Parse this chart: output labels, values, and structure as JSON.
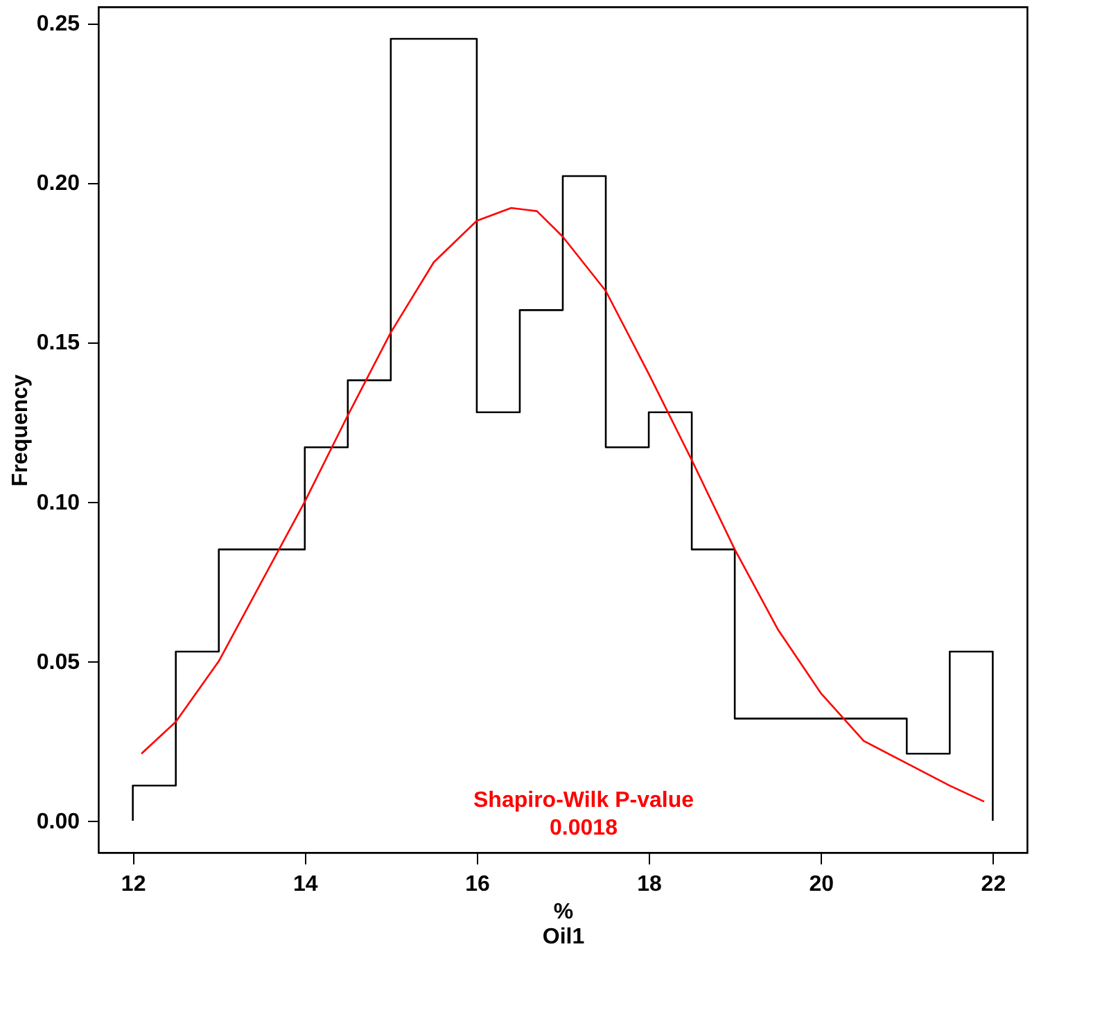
{
  "chart_data": {
    "type": "histogram",
    "xlabel": "%\nOil1",
    "ylabel": "Frequency",
    "color": "#000000",
    "bins": [
      12,
      12.5,
      13,
      14,
      14.5,
      15,
      16,
      16.5,
      17,
      17.5,
      18,
      18.5,
      19,
      21,
      21.5,
      22
    ],
    "values": [
      0.011,
      0.053,
      0.085,
      0.117,
      0.138,
      0.245,
      0.128,
      0.16,
      0.202,
      0.117,
      0.128,
      0.085,
      0.032,
      0.021,
      0.053
    ],
    "series": [
      {
        "type": "line",
        "color": "#ff0000",
        "x": [
          12.1,
          12.5,
          13,
          13.5,
          14,
          14.5,
          15,
          15.5,
          16,
          16.4,
          16.7,
          17,
          17.5,
          18,
          18.5,
          19,
          19.5,
          20,
          20.5,
          21,
          21.5,
          21.9
        ],
        "values": [
          0.021,
          0.031,
          0.05,
          0.075,
          0.1,
          0.127,
          0.153,
          0.175,
          0.188,
          0.192,
          0.191,
          0.183,
          0.166,
          0.14,
          0.113,
          0.085,
          0.06,
          0.04,
          0.025,
          0.018,
          0.011,
          0.006
        ]
      }
    ],
    "annotations": [
      "Shapiro-Wilk  P-value",
      "0.0018"
    ],
    "xlim": [
      11.6,
      22.4
    ],
    "ylim": [
      -0.01,
      0.255
    ],
    "xticks": [
      12,
      14,
      16,
      18,
      20,
      22
    ],
    "yticks": [
      {
        "value": 0,
        "label": "0.00"
      },
      {
        "value": 0.05,
        "label": "0.05"
      },
      {
        "value": 0.1,
        "label": "0.10"
      },
      {
        "value": 0.15,
        "label": "0.15"
      },
      {
        "value": 0.2,
        "label": "0.20"
      },
      {
        "value": 0.25,
        "label": "0.25"
      }
    ],
    "grid": false
  }
}
